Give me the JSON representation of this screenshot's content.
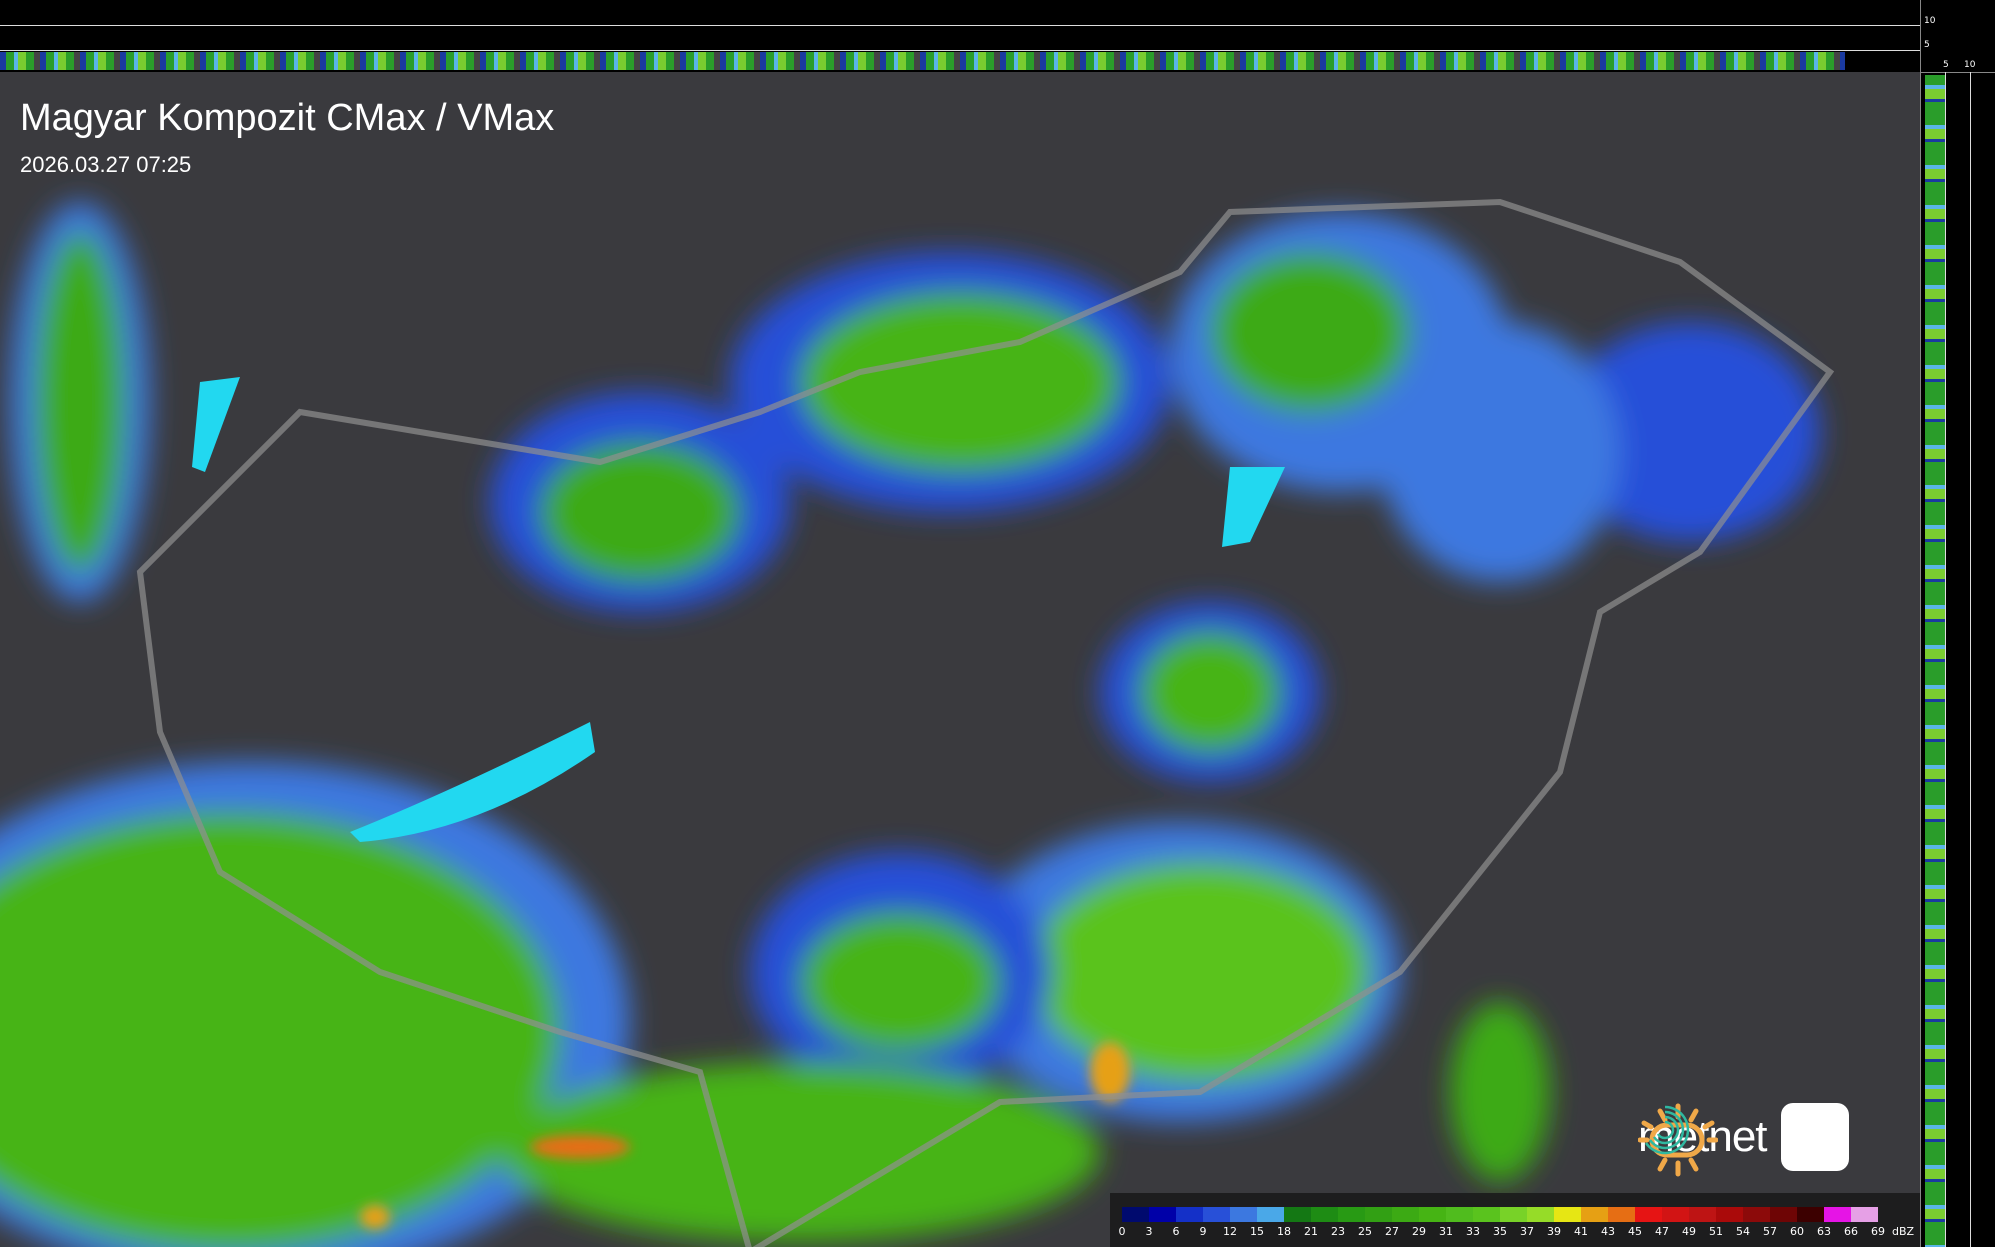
{
  "title": "Magyar Kompozit CMax / VMax",
  "timestamp": "2026.03.27 07:25",
  "profile_axes": {
    "top_ticks": [
      "10",
      "5"
    ],
    "right_ticks": [
      "5",
      "10"
    ]
  },
  "brand": {
    "name": "metnet",
    "sun_color": "#f0a848",
    "app_icon_color": "#2fb8a0"
  },
  "legend": {
    "unit": "dBZ",
    "labels": [
      "0",
      "3",
      "6",
      "9",
      "12",
      "15",
      "18",
      "21",
      "23",
      "25",
      "27",
      "29",
      "31",
      "33",
      "35",
      "37",
      "39",
      "41",
      "43",
      "45",
      "47",
      "49",
      "51",
      "54",
      "57",
      "60",
      "63",
      "66",
      "69"
    ],
    "colors": [
      "#000a6e",
      "#0000a8",
      "#1430c8",
      "#2850d8",
      "#3c78e0",
      "#4aa8e8",
      "#147814",
      "#1e8c14",
      "#289a14",
      "#32a014",
      "#3caa14",
      "#46b414",
      "#50bc1e",
      "#5ac31e",
      "#78d228",
      "#96dc28",
      "#e6e614",
      "#e6a014",
      "#e66e14",
      "#e61414",
      "#d21414",
      "#be1414",
      "#aa0a0a",
      "#8c0a0a",
      "#6e0505",
      "#3c0000",
      "#e614e6",
      "#e6a0e6",
      "#a0e6e6"
    ]
  }
}
